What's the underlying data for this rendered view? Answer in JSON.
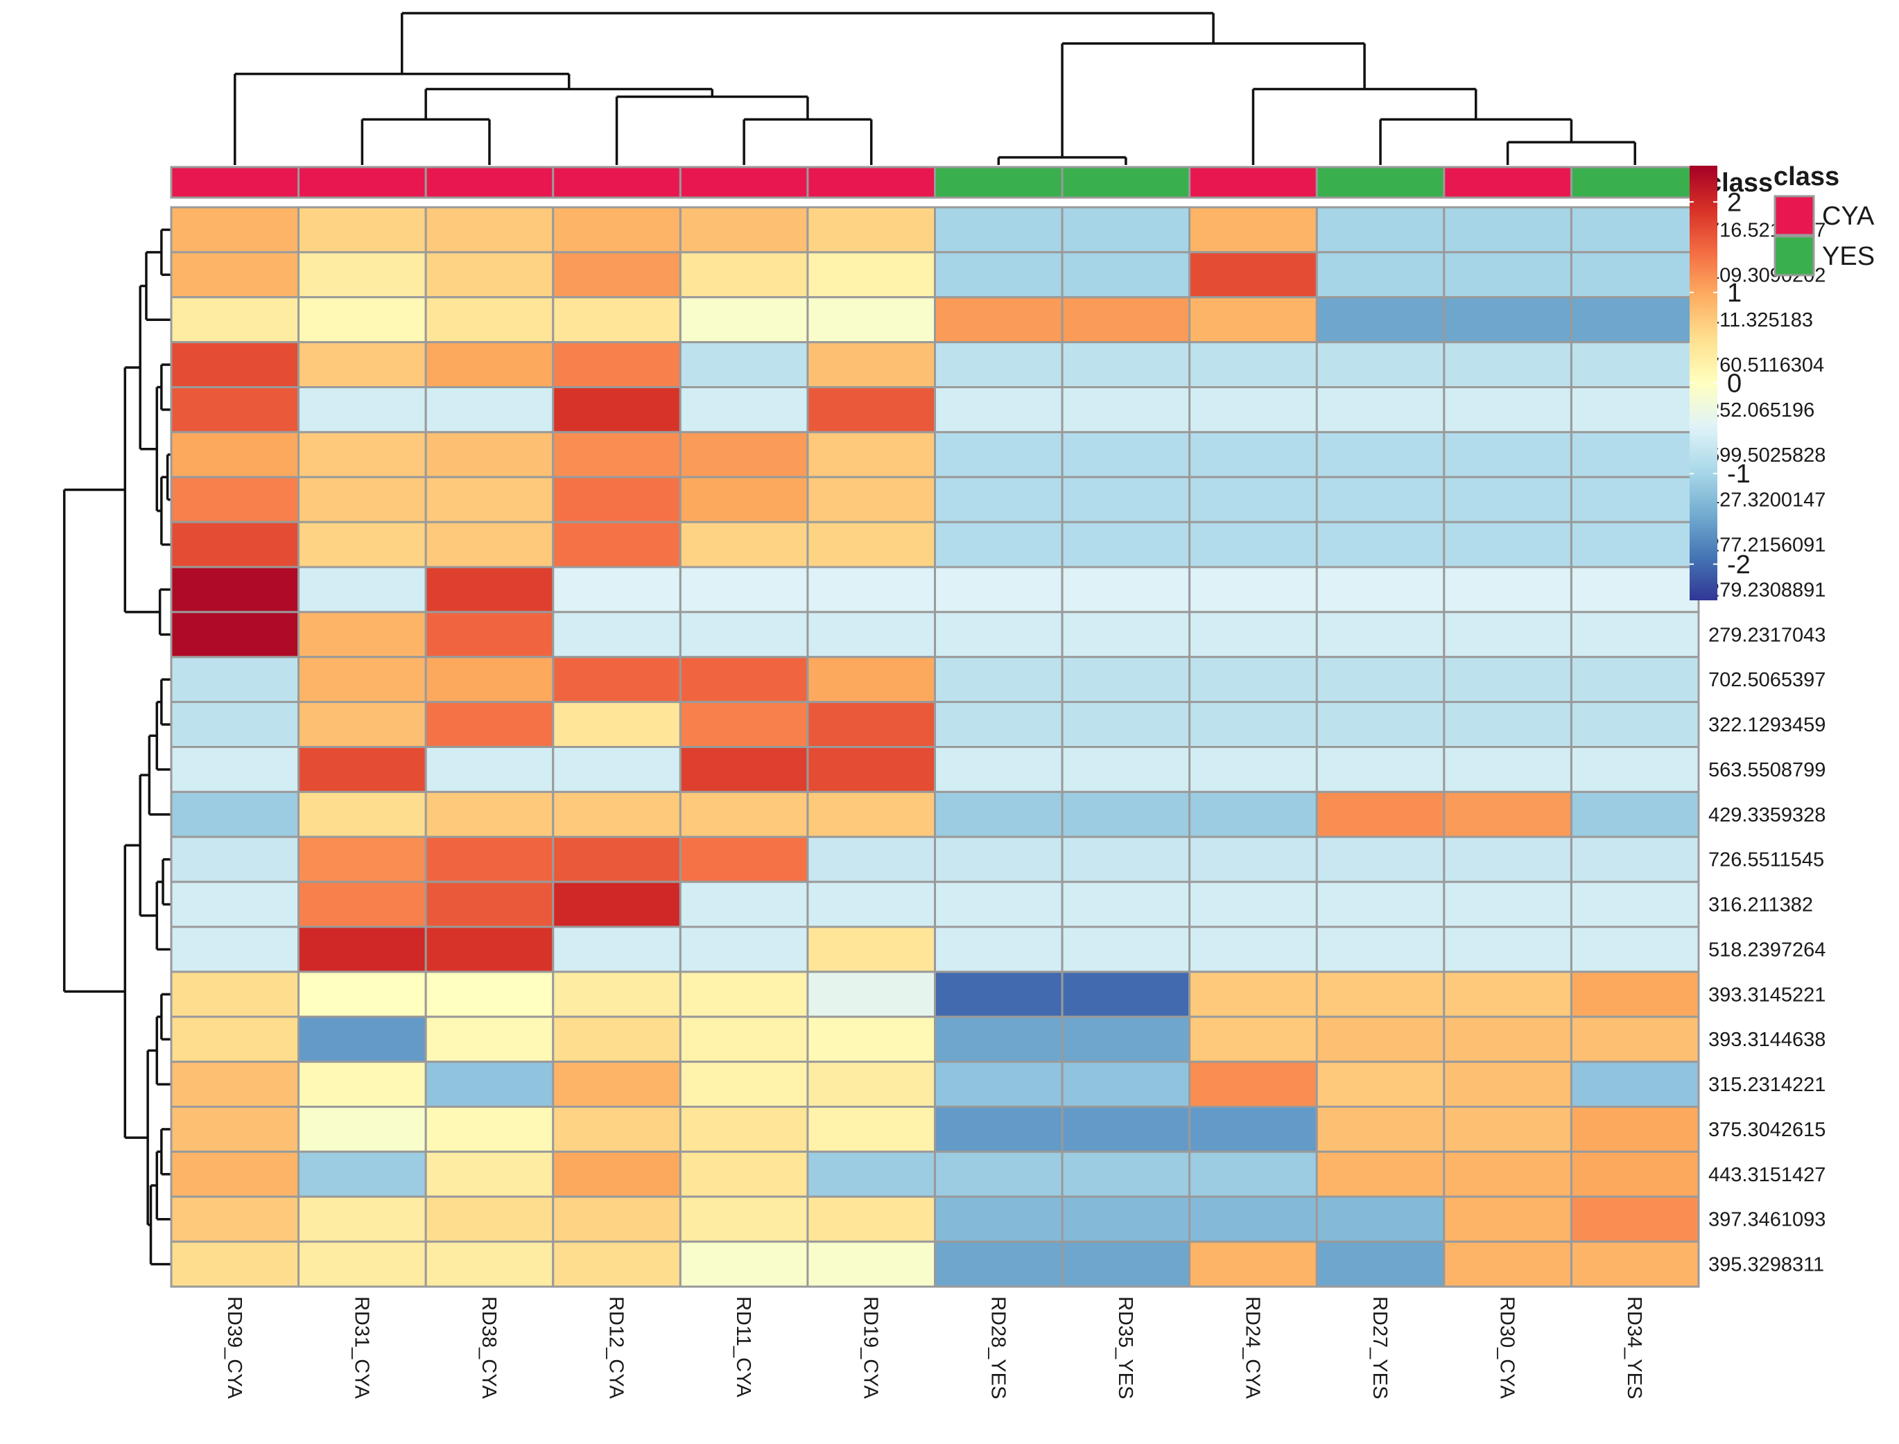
{
  "chart_data": {
    "type": "heatmap",
    "title": "",
    "columns": [
      "RD39_CYA",
      "RD31_CYA",
      "RD38_CYA",
      "RD12_CYA",
      "RD11_CYA",
      "RD19_CYA",
      "RD28_YES",
      "RD35_YES",
      "RD24_CYA",
      "RD27_YES",
      "RD30_CYA",
      "RD34_YES"
    ],
    "rows": [
      "716.5213747",
      "409.3090202",
      "411.325183",
      "760.5116304",
      "252.065196",
      "599.5025828",
      "427.3200147",
      "277.2156091",
      "279.2308891",
      "279.2317043",
      "702.5065397",
      "322.1293459",
      "563.5508799",
      "429.3359328",
      "726.5511545",
      "316.211382",
      "518.2397264",
      "393.3145221",
      "393.3144638",
      "315.2314221",
      "375.3042615",
      "443.3151427",
      "397.3461093",
      "395.3298311"
    ],
    "values": [
      [
        0.9,
        0.6,
        0.7,
        0.9,
        0.8,
        0.6,
        -1.0,
        -1.0,
        0.9,
        -1.0,
        -1.0,
        -1.0
      ],
      [
        0.9,
        0.3,
        0.6,
        1.1,
        0.4,
        0.2,
        -1.0,
        -1.0,
        1.7,
        -1.0,
        -1.0,
        -1.0
      ],
      [
        0.3,
        0.1,
        0.4,
        0.4,
        -0.1,
        -0.1,
        1.1,
        1.1,
        0.9,
        -1.5,
        -1.5,
        -1.5
      ],
      [
        1.7,
        0.7,
        1.0,
        1.3,
        -0.8,
        0.8,
        -0.8,
        -0.8,
        -0.8,
        -0.8,
        -0.8,
        -0.8
      ],
      [
        1.6,
        -0.6,
        -0.6,
        1.9,
        -0.6,
        1.6,
        -0.6,
        -0.6,
        -0.6,
        -0.6,
        -0.6,
        -0.6
      ],
      [
        1.0,
        0.7,
        0.8,
        1.2,
        1.1,
        0.7,
        -0.9,
        -0.9,
        -0.9,
        -0.9,
        -0.9,
        -0.9
      ],
      [
        1.3,
        0.7,
        0.7,
        1.4,
        1.0,
        0.7,
        -0.9,
        -0.9,
        -0.9,
        -0.9,
        -0.9,
        -0.9
      ],
      [
        1.7,
        0.6,
        0.7,
        1.4,
        0.6,
        0.6,
        -0.9,
        -0.9,
        -0.9,
        -0.9,
        -0.9,
        -0.9
      ],
      [
        2.3,
        -0.6,
        1.8,
        -0.5,
        -0.5,
        -0.5,
        -0.5,
        -0.5,
        -0.5,
        -0.5,
        -0.5,
        -0.5
      ],
      [
        2.3,
        0.9,
        1.5,
        -0.6,
        -0.6,
        -0.6,
        -0.6,
        -0.6,
        -0.6,
        -0.6,
        -0.6,
        -0.6
      ],
      [
        -0.8,
        0.9,
        1.0,
        1.5,
        1.5,
        1.0,
        -0.8,
        -0.8,
        -0.8,
        -0.8,
        -0.8,
        -0.8
      ],
      [
        -0.8,
        0.8,
        1.4,
        0.4,
        1.3,
        1.6,
        -0.8,
        -0.8,
        -0.8,
        -0.8,
        -0.8,
        -0.8
      ],
      [
        -0.6,
        1.7,
        -0.6,
        -0.6,
        1.8,
        1.7,
        -0.6,
        -0.6,
        -0.6,
        -0.6,
        -0.6,
        -0.6
      ],
      [
        -1.1,
        0.5,
        0.7,
        0.7,
        0.7,
        0.7,
        -1.1,
        -1.1,
        -1.1,
        1.2,
        1.1,
        -1.1
      ],
      [
        -0.7,
        1.2,
        1.5,
        1.6,
        1.4,
        -0.7,
        -0.7,
        -0.7,
        -0.7,
        -0.7,
        -0.7,
        -0.7
      ],
      [
        -0.6,
        1.3,
        1.6,
        2.0,
        -0.6,
        -0.6,
        -0.6,
        -0.6,
        -0.6,
        -0.6,
        -0.6,
        -0.6
      ],
      [
        -0.6,
        2.0,
        1.9,
        -0.6,
        -0.6,
        0.4,
        -0.6,
        -0.6,
        -0.6,
        -0.6,
        -0.6,
        -0.6
      ],
      [
        0.5,
        0.0,
        0.0,
        0.3,
        0.2,
        -0.4,
        -2.0,
        -2.0,
        0.7,
        0.7,
        0.7,
        1.0
      ],
      [
        0.5,
        -1.6,
        0.1,
        0.5,
        0.2,
        0.1,
        -1.5,
        -1.5,
        0.7,
        0.8,
        0.8,
        0.8
      ],
      [
        0.8,
        0.1,
        -1.2,
        0.9,
        0.2,
        0.3,
        -1.2,
        -1.2,
        1.2,
        0.7,
        0.8,
        -1.2
      ],
      [
        0.8,
        -0.1,
        0.1,
        0.6,
        0.4,
        0.2,
        -1.6,
        -1.6,
        -1.6,
        0.8,
        0.8,
        1.0
      ],
      [
        0.9,
        -1.1,
        0.3,
        1.0,
        0.4,
        -1.1,
        -1.1,
        -1.1,
        -1.1,
        0.9,
        0.9,
        1.0
      ],
      [
        0.7,
        0.3,
        0.5,
        0.6,
        0.3,
        0.4,
        -1.3,
        -1.3,
        -1.3,
        -1.3,
        0.9,
        1.2
      ],
      [
        0.5,
        0.3,
        0.3,
        0.5,
        -0.1,
        -0.1,
        -1.5,
        -1.5,
        0.9,
        -1.5,
        0.9,
        0.9
      ]
    ],
    "column_annotation": {
      "title": "class",
      "values": [
        "CYA",
        "CYA",
        "CYA",
        "CYA",
        "CYA",
        "CYA",
        "YES",
        "YES",
        "CYA",
        "YES",
        "CYA",
        "YES"
      ],
      "levels": [
        "CYA",
        "YES"
      ],
      "colors": {
        "CYA": "#E8174F",
        "YES": "#3AAF4D"
      }
    },
    "color_scale": {
      "range": [
        -2.4,
        2.4
      ],
      "ticks": [
        2,
        1,
        0,
        -1,
        -2
      ],
      "tick_labels": [
        "2",
        "1",
        "0",
        "-1",
        "-2"
      ],
      "palette": [
        "#313695",
        "#4575B4",
        "#74ADD1",
        "#ABD9E9",
        "#E0F3F8",
        "#FFFFBF",
        "#FEE090",
        "#FDAE61",
        "#F46D43",
        "#D73027",
        "#A50026"
      ]
    },
    "legend": {
      "title": "class",
      "items": [
        "CYA",
        "YES"
      ],
      "placement": "right"
    },
    "column_dendrogram": [
      [
        10,
        11,
        0.15
      ],
      [
        9,
        12,
        0.3
      ],
      [
        8,
        13,
        0.5
      ],
      [
        6,
        7,
        0.05
      ],
      [
        15,
        14,
        0.8
      ],
      [
        4,
        5,
        0.3
      ],
      [
        3,
        17,
        0.45
      ],
      [
        1,
        2,
        0.3
      ],
      [
        18,
        19,
        0.5
      ],
      [
        0,
        20,
        0.6
      ],
      [
        21,
        16,
        1.0
      ]
    ],
    "row_dendrogram": [
      [
        0,
        1,
        0.15
      ],
      [
        12,
        2,
        0.35
      ],
      [
        3,
        4,
        0.15
      ],
      [
        5,
        6,
        0.05
      ],
      [
        16,
        7,
        0.1
      ],
      [
        14,
        15,
        0.2
      ],
      [
        17,
        18,
        0.45
      ],
      [
        8,
        9,
        0.15
      ],
      [
        19,
        20,
        0.55
      ],
      [
        13,
        21,
        0.75
      ],
      [
        10,
        11,
        0.15
      ],
      [
        23,
        12,
        0.25
      ],
      [
        14,
        15,
        0.15
      ]
    ]
  }
}
